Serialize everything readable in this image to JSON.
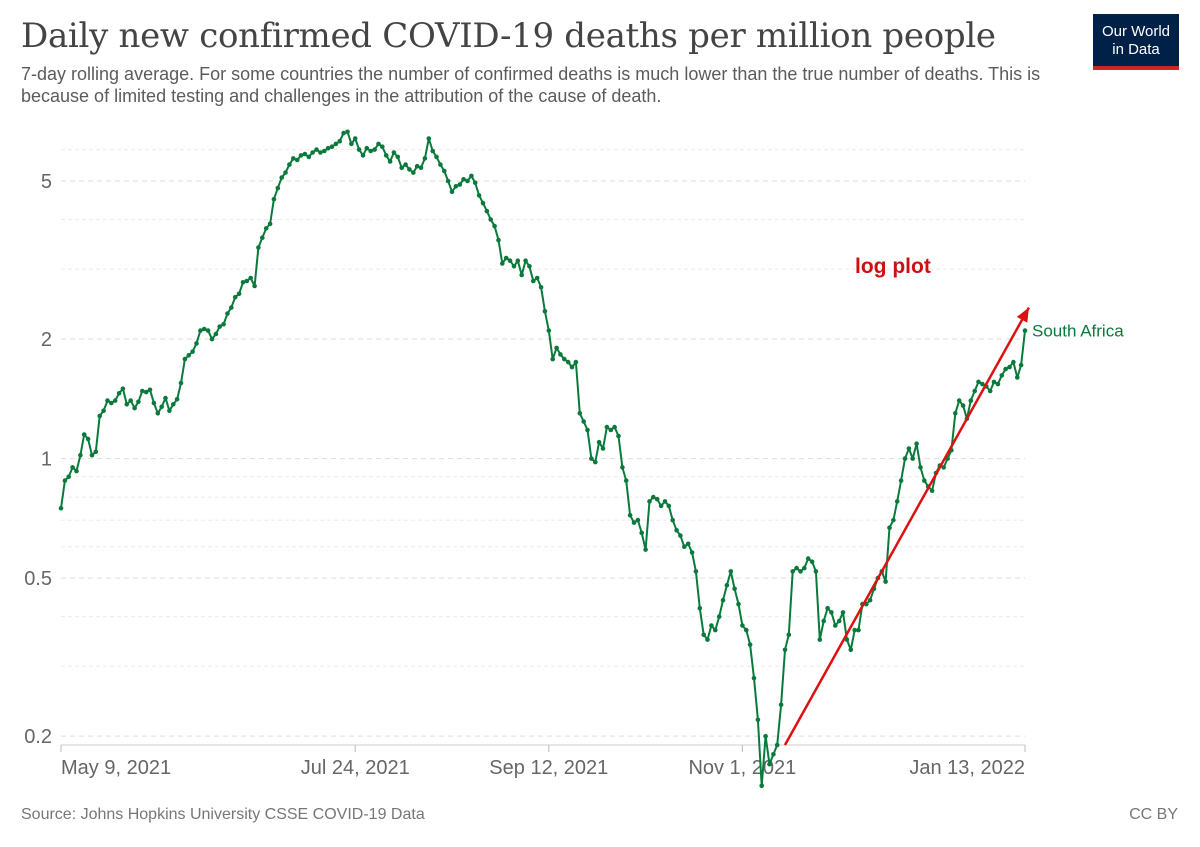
{
  "header": {
    "title": "Daily new confirmed COVID-19 deaths per million people",
    "subtitle": "7-day rolling average. For some countries the number of confirmed deaths is much lower than the true number of deaths. This is because of limited testing and challenges in the attribution of the cause of death."
  },
  "logo": {
    "line1": "Our World",
    "line2": "in Data",
    "bg_color": "#002147",
    "accent_color": "#ce261e"
  },
  "footer": {
    "source": "Source: Johns Hopkins University CSSE COVID-19 Data",
    "license": "CC BY"
  },
  "chart_data": {
    "type": "line",
    "scale": "log",
    "grid": true,
    "title": "Daily new confirmed COVID-19 deaths per million people",
    "ylim": [
      0.19,
      6.8
    ],
    "y_ticks": [
      {
        "value": 0.2,
        "label": "0.2"
      },
      {
        "value": 0.5,
        "label": "0.5"
      },
      {
        "value": 1,
        "label": "1"
      },
      {
        "value": 2,
        "label": "2"
      },
      {
        "value": 5,
        "label": "5"
      }
    ],
    "x_range": [
      "2021-05-09",
      "2022-01-13"
    ],
    "x_ticks": [
      {
        "date": "2021-05-09",
        "label": "May 9, 2021"
      },
      {
        "date": "2021-07-24",
        "label": "Jul 24, 2021"
      },
      {
        "date": "2021-09-12",
        "label": "Sep 12, 2021"
      },
      {
        "date": "2021-11-01",
        "label": "Nov 1, 2021"
      },
      {
        "date": "2022-01-13",
        "label": "Jan 13, 2022"
      }
    ],
    "series": [
      {
        "name": "South Africa",
        "color": "#0a7a3c",
        "points": [
          [
            "2021-05-09",
            0.75
          ],
          [
            "2021-05-10",
            0.88
          ],
          [
            "2021-05-11",
            0.9
          ],
          [
            "2021-05-12",
            0.95
          ],
          [
            "2021-05-13",
            0.93
          ],
          [
            "2021-05-14",
            1.02
          ],
          [
            "2021-05-15",
            1.15
          ],
          [
            "2021-05-16",
            1.12
          ],
          [
            "2021-05-17",
            1.02
          ],
          [
            "2021-05-18",
            1.04
          ],
          [
            "2021-05-19",
            1.28
          ],
          [
            "2021-05-20",
            1.32
          ],
          [
            "2021-05-21",
            1.4
          ],
          [
            "2021-05-22",
            1.38
          ],
          [
            "2021-05-23",
            1.4
          ],
          [
            "2021-05-24",
            1.46
          ],
          [
            "2021-05-25",
            1.5
          ],
          [
            "2021-05-26",
            1.37
          ],
          [
            "2021-05-27",
            1.4
          ],
          [
            "2021-05-28",
            1.34
          ],
          [
            "2021-05-29",
            1.39
          ],
          [
            "2021-05-30",
            1.48
          ],
          [
            "2021-05-31",
            1.47
          ],
          [
            "2021-06-01",
            1.49
          ],
          [
            "2021-06-02",
            1.38
          ],
          [
            "2021-06-03",
            1.3
          ],
          [
            "2021-06-04",
            1.35
          ],
          [
            "2021-06-05",
            1.42
          ],
          [
            "2021-06-06",
            1.32
          ],
          [
            "2021-06-07",
            1.37
          ],
          [
            "2021-06-08",
            1.41
          ],
          [
            "2021-06-09",
            1.55
          ],
          [
            "2021-06-10",
            1.78
          ],
          [
            "2021-06-11",
            1.82
          ],
          [
            "2021-06-12",
            1.86
          ],
          [
            "2021-06-13",
            1.95
          ],
          [
            "2021-06-14",
            2.1
          ],
          [
            "2021-06-15",
            2.12
          ],
          [
            "2021-06-16",
            2.1
          ],
          [
            "2021-06-17",
            2.0
          ],
          [
            "2021-06-18",
            2.06
          ],
          [
            "2021-06-19",
            2.15
          ],
          [
            "2021-06-20",
            2.18
          ],
          [
            "2021-06-21",
            2.32
          ],
          [
            "2021-06-22",
            2.4
          ],
          [
            "2021-06-23",
            2.55
          ],
          [
            "2021-06-24",
            2.6
          ],
          [
            "2021-06-25",
            2.78
          ],
          [
            "2021-06-26",
            2.8
          ],
          [
            "2021-06-27",
            2.85
          ],
          [
            "2021-06-28",
            2.72
          ],
          [
            "2021-06-29",
            3.4
          ],
          [
            "2021-06-30",
            3.6
          ],
          [
            "2021-07-01",
            3.8
          ],
          [
            "2021-07-02",
            3.9
          ],
          [
            "2021-07-03",
            4.5
          ],
          [
            "2021-07-04",
            4.8
          ],
          [
            "2021-07-05",
            5.1
          ],
          [
            "2021-07-06",
            5.25
          ],
          [
            "2021-07-07",
            5.5
          ],
          [
            "2021-07-08",
            5.7
          ],
          [
            "2021-07-09",
            5.65
          ],
          [
            "2021-07-10",
            5.8
          ],
          [
            "2021-07-11",
            5.85
          ],
          [
            "2021-07-12",
            5.75
          ],
          [
            "2021-07-13",
            5.9
          ],
          [
            "2021-07-14",
            6.0
          ],
          [
            "2021-07-15",
            5.9
          ],
          [
            "2021-07-16",
            5.95
          ],
          [
            "2021-07-17",
            6.05
          ],
          [
            "2021-07-18",
            6.1
          ],
          [
            "2021-07-19",
            6.2
          ],
          [
            "2021-07-20",
            6.3
          ],
          [
            "2021-07-21",
            6.6
          ],
          [
            "2021-07-22",
            6.65
          ],
          [
            "2021-07-23",
            6.2
          ],
          [
            "2021-07-24",
            6.4
          ],
          [
            "2021-07-25",
            6.0
          ],
          [
            "2021-07-26",
            5.8
          ],
          [
            "2021-07-27",
            6.05
          ],
          [
            "2021-07-28",
            5.95
          ],
          [
            "2021-07-29",
            6.0
          ],
          [
            "2021-07-30",
            6.2
          ],
          [
            "2021-07-31",
            6.1
          ],
          [
            "2021-08-01",
            5.8
          ],
          [
            "2021-08-02",
            5.6
          ],
          [
            "2021-08-03",
            5.9
          ],
          [
            "2021-08-04",
            5.75
          ],
          [
            "2021-08-05",
            5.4
          ],
          [
            "2021-08-06",
            5.5
          ],
          [
            "2021-08-07",
            5.35
          ],
          [
            "2021-08-08",
            5.25
          ],
          [
            "2021-08-09",
            5.45
          ],
          [
            "2021-08-10",
            5.4
          ],
          [
            "2021-08-11",
            5.7
          ],
          [
            "2021-08-12",
            6.4
          ],
          [
            "2021-08-13",
            5.95
          ],
          [
            "2021-08-14",
            5.75
          ],
          [
            "2021-08-15",
            5.5
          ],
          [
            "2021-08-16",
            5.3
          ],
          [
            "2021-08-17",
            5.0
          ],
          [
            "2021-08-18",
            4.7
          ],
          [
            "2021-08-19",
            4.85
          ],
          [
            "2021-08-20",
            4.9
          ],
          [
            "2021-08-21",
            5.05
          ],
          [
            "2021-08-22",
            5.0
          ],
          [
            "2021-08-23",
            5.15
          ],
          [
            "2021-08-24",
            4.95
          ],
          [
            "2021-08-25",
            4.6
          ],
          [
            "2021-08-26",
            4.4
          ],
          [
            "2021-08-27",
            4.2
          ],
          [
            "2021-08-28",
            4.0
          ],
          [
            "2021-08-29",
            3.85
          ],
          [
            "2021-08-30",
            3.55
          ],
          [
            "2021-08-31",
            3.1
          ],
          [
            "2021-09-01",
            3.2
          ],
          [
            "2021-09-02",
            3.15
          ],
          [
            "2021-09-03",
            3.05
          ],
          [
            "2021-09-04",
            3.15
          ],
          [
            "2021-09-05",
            2.9
          ],
          [
            "2021-09-06",
            3.15
          ],
          [
            "2021-09-07",
            3.05
          ],
          [
            "2021-09-08",
            2.8
          ],
          [
            "2021-09-09",
            2.85
          ],
          [
            "2021-09-10",
            2.7
          ],
          [
            "2021-09-11",
            2.35
          ],
          [
            "2021-09-12",
            2.1
          ],
          [
            "2021-09-13",
            1.78
          ],
          [
            "2021-09-14",
            1.9
          ],
          [
            "2021-09-15",
            1.83
          ],
          [
            "2021-09-16",
            1.78
          ],
          [
            "2021-09-17",
            1.75
          ],
          [
            "2021-09-18",
            1.7
          ],
          [
            "2021-09-19",
            1.75
          ],
          [
            "2021-09-20",
            1.3
          ],
          [
            "2021-09-21",
            1.24
          ],
          [
            "2021-09-22",
            1.18
          ],
          [
            "2021-09-23",
            1.0
          ],
          [
            "2021-09-24",
            0.98
          ],
          [
            "2021-09-25",
            1.1
          ],
          [
            "2021-09-26",
            1.06
          ],
          [
            "2021-09-27",
            1.2
          ],
          [
            "2021-09-28",
            1.18
          ],
          [
            "2021-09-29",
            1.2
          ],
          [
            "2021-09-30",
            1.14
          ],
          [
            "2021-10-01",
            0.95
          ],
          [
            "2021-10-02",
            0.88
          ],
          [
            "2021-10-03",
            0.72
          ],
          [
            "2021-10-04",
            0.69
          ],
          [
            "2021-10-05",
            0.7
          ],
          [
            "2021-10-06",
            0.65
          ],
          [
            "2021-10-07",
            0.59
          ],
          [
            "2021-10-08",
            0.78
          ],
          [
            "2021-10-09",
            0.8
          ],
          [
            "2021-10-10",
            0.79
          ],
          [
            "2021-10-11",
            0.76
          ],
          [
            "2021-10-12",
            0.78
          ],
          [
            "2021-10-13",
            0.76
          ],
          [
            "2021-10-14",
            0.7
          ],
          [
            "2021-10-15",
            0.66
          ],
          [
            "2021-10-16",
            0.64
          ],
          [
            "2021-10-17",
            0.6
          ],
          [
            "2021-10-18",
            0.61
          ],
          [
            "2021-10-19",
            0.58
          ],
          [
            "2021-10-20",
            0.52
          ],
          [
            "2021-10-21",
            0.42
          ],
          [
            "2021-10-22",
            0.36
          ],
          [
            "2021-10-23",
            0.35
          ],
          [
            "2021-10-24",
            0.38
          ],
          [
            "2021-10-25",
            0.37
          ],
          [
            "2021-10-26",
            0.4
          ],
          [
            "2021-10-27",
            0.44
          ],
          [
            "2021-10-28",
            0.48
          ],
          [
            "2021-10-29",
            0.52
          ],
          [
            "2021-10-30",
            0.47
          ],
          [
            "2021-10-31",
            0.43
          ],
          [
            "2021-11-01",
            0.38
          ],
          [
            "2021-11-02",
            0.37
          ],
          [
            "2021-11-03",
            0.34
          ],
          [
            "2021-11-04",
            0.28
          ],
          [
            "2021-11-05",
            0.22
          ],
          [
            "2021-11-06",
            0.15
          ],
          [
            "2021-11-07",
            0.2
          ],
          [
            "2021-11-08",
            0.17
          ],
          [
            "2021-11-09",
            0.18
          ],
          [
            "2021-11-10",
            0.19
          ],
          [
            "2021-11-11",
            0.24
          ],
          [
            "2021-11-12",
            0.33
          ],
          [
            "2021-11-13",
            0.36
          ],
          [
            "2021-11-14",
            0.52
          ],
          [
            "2021-11-15",
            0.53
          ],
          [
            "2021-11-16",
            0.52
          ],
          [
            "2021-11-17",
            0.53
          ],
          [
            "2021-11-18",
            0.56
          ],
          [
            "2021-11-19",
            0.55
          ],
          [
            "2021-11-20",
            0.52
          ],
          [
            "2021-11-21",
            0.35
          ],
          [
            "2021-11-22",
            0.39
          ],
          [
            "2021-11-23",
            0.42
          ],
          [
            "2021-11-24",
            0.41
          ],
          [
            "2021-11-25",
            0.38
          ],
          [
            "2021-11-26",
            0.39
          ],
          [
            "2021-11-27",
            0.41
          ],
          [
            "2021-11-28",
            0.35
          ],
          [
            "2021-11-29",
            0.33
          ],
          [
            "2021-11-30",
            0.37
          ],
          [
            "2021-12-01",
            0.37
          ],
          [
            "2021-12-02",
            0.43
          ],
          [
            "2021-12-03",
            0.43
          ],
          [
            "2021-12-04",
            0.44
          ],
          [
            "2021-12-05",
            0.47
          ],
          [
            "2021-12-06",
            0.5
          ],
          [
            "2021-12-07",
            0.52
          ],
          [
            "2021-12-08",
            0.49
          ],
          [
            "2021-12-09",
            0.67
          ],
          [
            "2021-12-10",
            0.7
          ],
          [
            "2021-12-11",
            0.78
          ],
          [
            "2021-12-12",
            0.88
          ],
          [
            "2021-12-13",
            1.0
          ],
          [
            "2021-12-14",
            1.06
          ],
          [
            "2021-12-15",
            1.0
          ],
          [
            "2021-12-16",
            1.09
          ],
          [
            "2021-12-17",
            0.95
          ],
          [
            "2021-12-18",
            0.88
          ],
          [
            "2021-12-19",
            0.85
          ],
          [
            "2021-12-20",
            0.83
          ],
          [
            "2021-12-21",
            0.92
          ],
          [
            "2021-12-22",
            0.96
          ],
          [
            "2021-12-23",
            0.95
          ],
          [
            "2021-12-24",
            1.0
          ],
          [
            "2021-12-25",
            1.05
          ],
          [
            "2021-12-26",
            1.3
          ],
          [
            "2021-12-27",
            1.4
          ],
          [
            "2021-12-28",
            1.36
          ],
          [
            "2021-12-29",
            1.26
          ],
          [
            "2021-12-30",
            1.4
          ],
          [
            "2021-12-31",
            1.48
          ],
          [
            "2022-01-01",
            1.56
          ],
          [
            "2022-01-02",
            1.54
          ],
          [
            "2022-01-03",
            1.52
          ],
          [
            "2022-01-04",
            1.48
          ],
          [
            "2022-01-05",
            1.56
          ],
          [
            "2022-01-06",
            1.54
          ],
          [
            "2022-01-07",
            1.62
          ],
          [
            "2022-01-08",
            1.68
          ],
          [
            "2022-01-09",
            1.7
          ],
          [
            "2022-01-10",
            1.75
          ],
          [
            "2022-01-11",
            1.6
          ],
          [
            "2022-01-12",
            1.72
          ],
          [
            "2022-01-13",
            2.1
          ]
        ]
      }
    ],
    "annotations": [
      {
        "text": "log plot",
        "color": "#cc1111"
      }
    ],
    "trend_arrow": {
      "color": "#dd1111",
      "from": [
        "2021-11-12",
        0.19
      ],
      "to": [
        "2022-01-14",
        2.4
      ]
    }
  }
}
